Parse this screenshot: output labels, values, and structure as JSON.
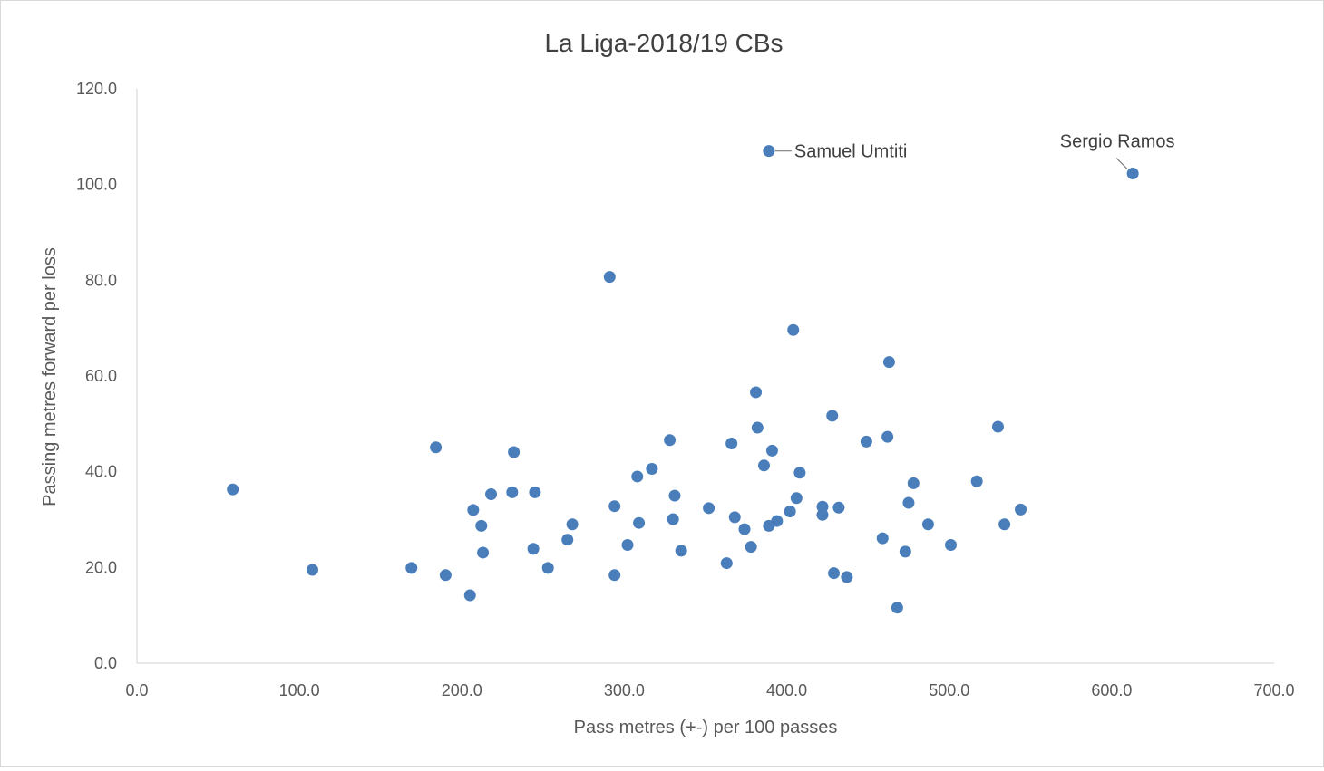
{
  "chart_data": {
    "type": "scatter",
    "title": "La Liga-2018/19 CBs",
    "xlabel": "Pass metres (+-) per 100 passes",
    "ylabel": "Passing metres forward per loss",
    "xlim": [
      0,
      700
    ],
    "ylim": [
      0,
      120
    ],
    "xticks": [
      "0.0",
      "100.0",
      "200.0",
      "300.0",
      "400.0",
      "500.0",
      "600.0",
      "700.0"
    ],
    "yticks": [
      "0.0",
      "20.0",
      "40.0",
      "60.0",
      "80.0",
      "100.0",
      "120.0"
    ],
    "grid": false,
    "legend": "none",
    "marker_color": "#4a7ebb",
    "series": [
      {
        "points": [
          [
            59,
            36.3
          ],
          [
            108,
            19.5
          ],
          [
            169,
            19.9
          ],
          [
            184,
            45.1
          ],
          [
            190,
            18.4
          ],
          [
            205,
            14.2
          ],
          [
            207,
            32.0
          ],
          [
            212,
            28.7
          ],
          [
            213,
            23.1
          ],
          [
            218,
            35.3
          ],
          [
            231,
            35.7
          ],
          [
            232,
            44.1
          ],
          [
            244,
            23.9
          ],
          [
            245,
            35.7
          ],
          [
            253,
            19.9
          ],
          [
            265,
            25.8
          ],
          [
            268,
            29.0
          ],
          [
            291,
            80.7
          ],
          [
            294,
            32.8
          ],
          [
            294,
            18.4
          ],
          [
            302,
            24.7
          ],
          [
            308,
            39.0
          ],
          [
            309,
            29.3
          ],
          [
            317,
            40.6
          ],
          [
            328,
            46.6
          ],
          [
            330,
            30.1
          ],
          [
            331,
            35.0
          ],
          [
            335,
            23.5
          ],
          [
            352,
            32.4
          ],
          [
            363,
            20.9
          ],
          [
            366,
            45.9
          ],
          [
            368,
            30.5
          ],
          [
            374,
            28.0
          ],
          [
            378,
            24.3
          ],
          [
            381,
            56.6
          ],
          [
            382,
            49.2
          ],
          [
            386,
            41.3
          ],
          [
            389,
            28.7
          ],
          [
            391,
            44.4
          ],
          [
            394,
            29.7
          ],
          [
            402,
            31.7
          ],
          [
            404,
            69.6
          ],
          [
            406,
            34.5
          ],
          [
            408,
            39.8
          ],
          [
            422,
            32.7
          ],
          [
            422,
            31.0
          ],
          [
            428,
            51.7
          ],
          [
            429,
            18.8
          ],
          [
            432,
            32.5
          ],
          [
            437,
            18.0
          ],
          [
            449,
            46.3
          ],
          [
            459,
            26.1
          ],
          [
            462,
            47.3
          ],
          [
            463,
            62.9
          ],
          [
            468,
            11.6
          ],
          [
            473,
            23.3
          ],
          [
            475,
            33.5
          ],
          [
            478,
            37.6
          ],
          [
            487,
            29.0
          ],
          [
            501,
            24.7
          ],
          [
            517,
            38.0
          ],
          [
            530,
            49.4
          ],
          [
            534,
            29.0
          ],
          [
            544,
            32.1
          ],
          [
            389,
            107.0
          ],
          [
            613,
            102.3
          ]
        ]
      }
    ],
    "annotations": [
      {
        "label": "Samuel Umtiti",
        "x": 389,
        "y": 107.0
      },
      {
        "label": "Sergio Ramos",
        "x": 613,
        "y": 102.3
      }
    ]
  }
}
